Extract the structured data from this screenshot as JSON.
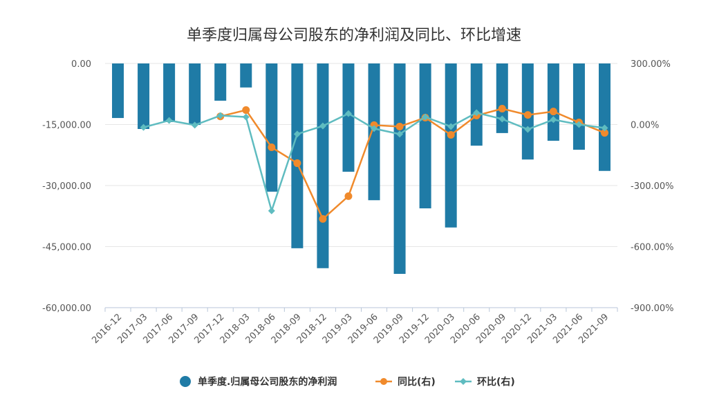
{
  "chart_data": {
    "type": "bar+line",
    "title": "单季度归属母公司股东的净利润及同比、环比增速",
    "categories": [
      "2016-12",
      "2017-03",
      "2017-06",
      "2017-09",
      "2017-12",
      "2018-03",
      "2018-06",
      "2018-09",
      "2018-12",
      "2019-03",
      "2019-06",
      "2019-09",
      "2019-12",
      "2020-03",
      "2020-06",
      "2020-09",
      "2020-12",
      "2021-03",
      "2021-06",
      "2021-09"
    ],
    "left_axis": {
      "ylim": [
        -60000,
        0
      ],
      "ticks": [
        "0.00",
        "-15,000.00",
        "-30,000.00",
        "-45,000.00",
        "-60,000.00"
      ]
    },
    "right_axis": {
      "ylim": [
        -900,
        300
      ],
      "ticks": [
        "300.00%",
        "0.00%",
        "-300.00%",
        "-600.00%",
        "-900.00%"
      ]
    },
    "grid": true,
    "legend_position": "bottom",
    "series": [
      {
        "name": "单季度.归属母公司股东的净利润",
        "type": "bar",
        "axis": "left",
        "color": "#1f7ba6",
        "values": [
          -13400,
          -16100,
          -14400,
          -15100,
          -9150,
          -5900,
          -31500,
          -45400,
          -50300,
          -26600,
          -33600,
          -51700,
          -35600,
          -40300,
          -20200,
          -17100,
          -23600,
          -19000,
          -21200,
          -26400
        ]
      },
      {
        "name": "同比(右)",
        "type": "line",
        "axis": "right",
        "color": "#f08a2c",
        "marker": "circle",
        "values": [
          null,
          null,
          null,
          null,
          40,
          71,
          -112,
          -190,
          -464,
          -352,
          -3,
          -10,
          34,
          -51,
          44,
          78,
          47,
          64,
          10,
          -41
        ]
      },
      {
        "name": "环比(右)",
        "type": "line",
        "axis": "right",
        "color": "#5fbcc0",
        "marker": "diamond",
        "values": [
          null,
          -14,
          20,
          -3,
          44,
          37,
          -424,
          -47,
          -7,
          54,
          -20,
          -47,
          37,
          -10,
          58,
          27,
          -24,
          24,
          0,
          -17
        ]
      }
    ]
  }
}
